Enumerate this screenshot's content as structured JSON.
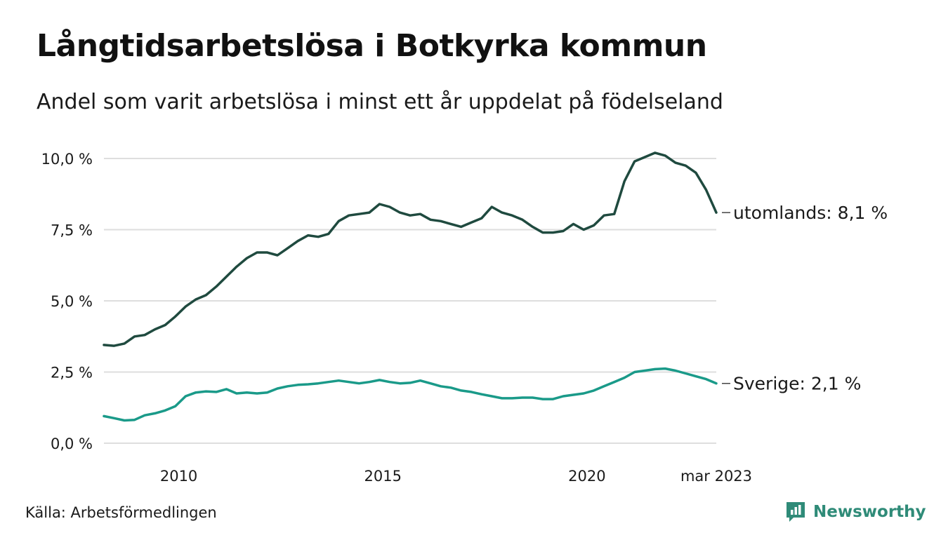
{
  "title": "Långtidsarbetslösa i Botkyrka kommun",
  "subtitle": "Andel som varit arbetslösa i minst ett år uppdelat på födelseland",
  "source": "Källa: Arbetsförmedlingen",
  "brand": {
    "name": "Newsworthy",
    "icon": "newsworthy-chart-logo-icon"
  },
  "colors": {
    "utomlands": "#1f4a3f",
    "sverige": "#1a9a89",
    "grid": "#dedede",
    "brand": "#2f8b78"
  },
  "chart_data": {
    "type": "line",
    "x_start": "2008-03",
    "x_end": "2023-03",
    "ylim": [
      0,
      10
    ],
    "yticks": [
      0,
      2.5,
      5,
      7.5,
      10
    ],
    "ytick_labels": [
      "0,0 %",
      "2,5 %",
      "5,0 %",
      "7,5 %",
      "10,0 %"
    ],
    "xticks": [
      {
        "x": "2010-01",
        "label": "2010"
      },
      {
        "x": "2015-01",
        "label": "2015"
      },
      {
        "x": "2020-01",
        "label": "2020"
      },
      {
        "x": "2023-03",
        "label": "mar 2023"
      }
    ],
    "grid": true,
    "series": [
      {
        "name": "utomlands",
        "end_label": "utomlands: 8,1 %",
        "points": [
          [
            "2008-03",
            3.45
          ],
          [
            "2008-06",
            3.42
          ],
          [
            "2008-09",
            3.5
          ],
          [
            "2008-12",
            3.75
          ],
          [
            "2009-03",
            3.8
          ],
          [
            "2009-06",
            4.0
          ],
          [
            "2009-09",
            4.15
          ],
          [
            "2009-12",
            4.45
          ],
          [
            "2010-03",
            4.8
          ],
          [
            "2010-06",
            5.05
          ],
          [
            "2010-09",
            5.2
          ],
          [
            "2010-12",
            5.5
          ],
          [
            "2011-03",
            5.85
          ],
          [
            "2011-06",
            6.2
          ],
          [
            "2011-09",
            6.5
          ],
          [
            "2011-12",
            6.7
          ],
          [
            "2012-03",
            6.7
          ],
          [
            "2012-06",
            6.6
          ],
          [
            "2012-09",
            6.85
          ],
          [
            "2012-12",
            7.1
          ],
          [
            "2013-03",
            7.3
          ],
          [
            "2013-06",
            7.25
          ],
          [
            "2013-09",
            7.35
          ],
          [
            "2013-12",
            7.8
          ],
          [
            "2014-03",
            8.0
          ],
          [
            "2014-06",
            8.05
          ],
          [
            "2014-09",
            8.1
          ],
          [
            "2014-12",
            8.4
          ],
          [
            "2015-03",
            8.3
          ],
          [
            "2015-06",
            8.1
          ],
          [
            "2015-09",
            8.0
          ],
          [
            "2015-12",
            8.05
          ],
          [
            "2016-03",
            7.85
          ],
          [
            "2016-06",
            7.8
          ],
          [
            "2016-09",
            7.7
          ],
          [
            "2016-12",
            7.6
          ],
          [
            "2017-03",
            7.75
          ],
          [
            "2017-06",
            7.9
          ],
          [
            "2017-09",
            8.3
          ],
          [
            "2017-12",
            8.1
          ],
          [
            "2018-03",
            8.0
          ],
          [
            "2018-06",
            7.85
          ],
          [
            "2018-09",
            7.6
          ],
          [
            "2018-12",
            7.4
          ],
          [
            "2019-03",
            7.4
          ],
          [
            "2019-06",
            7.45
          ],
          [
            "2019-09",
            7.7
          ],
          [
            "2019-12",
            7.5
          ],
          [
            "2020-03",
            7.65
          ],
          [
            "2020-06",
            8.0
          ],
          [
            "2020-09",
            8.05
          ],
          [
            "2020-12",
            9.2
          ],
          [
            "2021-03",
            9.9
          ],
          [
            "2021-06",
            10.05
          ],
          [
            "2021-09",
            10.2
          ],
          [
            "2021-12",
            10.1
          ],
          [
            "2022-03",
            9.85
          ],
          [
            "2022-06",
            9.75
          ],
          [
            "2022-09",
            9.5
          ],
          [
            "2022-12",
            8.9
          ],
          [
            "2023-03",
            8.1
          ]
        ]
      },
      {
        "name": "Sverige",
        "end_label": "Sverige: 2,1 %",
        "points": [
          [
            "2008-03",
            0.95
          ],
          [
            "2008-06",
            0.88
          ],
          [
            "2008-09",
            0.8
          ],
          [
            "2008-12",
            0.82
          ],
          [
            "2009-03",
            0.98
          ],
          [
            "2009-06",
            1.05
          ],
          [
            "2009-09",
            1.15
          ],
          [
            "2009-12",
            1.3
          ],
          [
            "2010-03",
            1.65
          ],
          [
            "2010-06",
            1.78
          ],
          [
            "2010-09",
            1.82
          ],
          [
            "2010-12",
            1.8
          ],
          [
            "2011-03",
            1.9
          ],
          [
            "2011-06",
            1.75
          ],
          [
            "2011-09",
            1.78
          ],
          [
            "2011-12",
            1.75
          ],
          [
            "2012-03",
            1.78
          ],
          [
            "2012-06",
            1.92
          ],
          [
            "2012-09",
            2.0
          ],
          [
            "2012-12",
            2.05
          ],
          [
            "2013-03",
            2.07
          ],
          [
            "2013-06",
            2.1
          ],
          [
            "2013-09",
            2.15
          ],
          [
            "2013-12",
            2.2
          ],
          [
            "2014-03",
            2.15
          ],
          [
            "2014-06",
            2.1
          ],
          [
            "2014-09",
            2.15
          ],
          [
            "2014-12",
            2.22
          ],
          [
            "2015-03",
            2.15
          ],
          [
            "2015-06",
            2.1
          ],
          [
            "2015-09",
            2.12
          ],
          [
            "2015-12",
            2.2
          ],
          [
            "2016-03",
            2.1
          ],
          [
            "2016-06",
            2.0
          ],
          [
            "2016-09",
            1.95
          ],
          [
            "2016-12",
            1.85
          ],
          [
            "2017-03",
            1.8
          ],
          [
            "2017-06",
            1.72
          ],
          [
            "2017-09",
            1.65
          ],
          [
            "2017-12",
            1.58
          ],
          [
            "2018-03",
            1.58
          ],
          [
            "2018-06",
            1.6
          ],
          [
            "2018-09",
            1.6
          ],
          [
            "2018-12",
            1.55
          ],
          [
            "2019-03",
            1.55
          ],
          [
            "2019-06",
            1.65
          ],
          [
            "2019-09",
            1.7
          ],
          [
            "2019-12",
            1.75
          ],
          [
            "2020-03",
            1.85
          ],
          [
            "2020-06",
            2.0
          ],
          [
            "2020-09",
            2.15
          ],
          [
            "2020-12",
            2.3
          ],
          [
            "2021-03",
            2.5
          ],
          [
            "2021-06",
            2.55
          ],
          [
            "2021-09",
            2.6
          ],
          [
            "2021-12",
            2.62
          ],
          [
            "2022-03",
            2.55
          ],
          [
            "2022-06",
            2.45
          ],
          [
            "2022-09",
            2.35
          ],
          [
            "2022-12",
            2.25
          ],
          [
            "2023-03",
            2.1
          ]
        ]
      }
    ]
  }
}
